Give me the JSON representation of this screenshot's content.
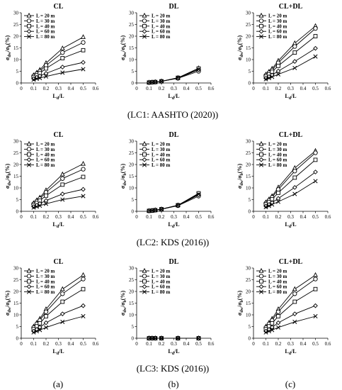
{
  "figure": {
    "row_captions": [
      "(LC1: AASHTO (2020))",
      "(LC2: KDS (2016))",
      "(LC3: KDS (2016))"
    ],
    "column_letters": [
      "(a)",
      "(b)",
      "(c)"
    ]
  },
  "chart_data": [
    {
      "id": "lc1-cl",
      "type": "line",
      "title": "CL",
      "xlabel": "L_d/L",
      "ylabel": "σ_dw/σ_b(%)",
      "xlim": [
        0,
        0.6
      ],
      "ylim": [
        0,
        30
      ],
      "xticks": [
        0,
        0.1,
        0.2,
        0.3,
        0.4,
        0.5,
        0.6
      ],
      "yticks": [
        0,
        5,
        10,
        15,
        20,
        25,
        30
      ],
      "legend_position": "top-left",
      "x": [
        0.1,
        0.125,
        0.15,
        0.2,
        0.333,
        0.5
      ],
      "series": [
        {
          "name": "L = 20 m",
          "marker": "triangle",
          "values": [
            3.3,
            4.4,
            5.6,
            8.5,
            14.8,
            19.6
          ]
        },
        {
          "name": "L = 30 m",
          "marker": "circle",
          "values": [
            3.0,
            4.0,
            5.0,
            7.5,
            13.0,
            17.3
          ]
        },
        {
          "name": "L = 40 m",
          "marker": "square",
          "values": [
            2.5,
            3.3,
            4.2,
            6.2,
            10.6,
            14.0
          ]
        },
        {
          "name": "L = 60 m",
          "marker": "diamond",
          "values": [
            1.8,
            2.4,
            3.0,
            4.1,
            6.8,
            8.8
          ]
        },
        {
          "name": "L = 80 m",
          "marker": "cross",
          "values": [
            1.4,
            1.8,
            2.1,
            2.8,
            4.4,
            5.9
          ]
        }
      ]
    },
    {
      "id": "lc1-dl",
      "type": "line",
      "title": "DL",
      "xlabel": "L_d/L",
      "ylabel": "σ_dw/σ_b(%)",
      "xlim": [
        0,
        0.6
      ],
      "ylim": [
        0,
        30
      ],
      "xticks": [
        0,
        0.1,
        0.2,
        0.3,
        0.4,
        0.5,
        0.6
      ],
      "yticks": [
        0,
        5,
        10,
        15,
        20,
        25,
        30
      ],
      "legend_position": "top-left",
      "x": [
        0.1,
        0.125,
        0.15,
        0.2,
        0.333,
        0.5
      ],
      "series": [
        {
          "name": "L = 20 m",
          "marker": "triangle",
          "values": [
            0.2,
            0.3,
            0.4,
            0.7,
            2.2,
            6.3
          ]
        },
        {
          "name": "L = 30 m",
          "marker": "circle",
          "values": [
            0.2,
            0.3,
            0.4,
            0.7,
            2.0,
            5.0
          ]
        },
        {
          "name": "L = 40 m",
          "marker": "square",
          "values": [
            0.2,
            0.3,
            0.4,
            0.7,
            2.2,
            6.2
          ]
        },
        {
          "name": "L = 60 m",
          "marker": "diamond",
          "values": [
            0.2,
            0.3,
            0.4,
            0.7,
            2.1,
            5.6
          ]
        },
        {
          "name": "L = 80 m",
          "marker": "cross",
          "values": [
            0.2,
            0.3,
            0.4,
            0.7,
            2.2,
            5.8
          ]
        }
      ]
    },
    {
      "id": "lc1-cldl",
      "type": "line",
      "title": "CL+DL",
      "xlabel": "L_d/L",
      "ylabel": "σ_dw/σ_b(%)",
      "xlim": [
        0,
        0.6
      ],
      "ylim": [
        0,
        30
      ],
      "xticks": [
        0,
        0.1,
        0.2,
        0.3,
        0.4,
        0.5,
        0.6
      ],
      "yticks": [
        0,
        5,
        10,
        15,
        20,
        25,
        30
      ],
      "legend_position": "top-left",
      "x": [
        0.1,
        0.125,
        0.15,
        0.2,
        0.333,
        0.5
      ],
      "series": [
        {
          "name": "L = 20 m",
          "marker": "triangle",
          "values": [
            3.6,
            4.8,
            6.1,
            9.5,
            17.0,
            24.3
          ]
        },
        {
          "name": "L = 30 m",
          "marker": "circle",
          "values": [
            3.3,
            4.4,
            5.5,
            8.6,
            15.6,
            23.3
          ]
        },
        {
          "name": "L = 40 m",
          "marker": "square",
          "values": [
            2.8,
            3.7,
            4.8,
            7.3,
            13.0,
            20.0
          ]
        },
        {
          "name": "L = 60 m",
          "marker": "diamond",
          "values": [
            2.0,
            2.7,
            3.4,
            5.1,
            9.2,
            14.8
          ]
        },
        {
          "name": "L = 80 m",
          "marker": "cross",
          "values": [
            1.6,
            2.1,
            2.6,
            3.7,
            6.4,
            11.3
          ]
        }
      ]
    },
    {
      "id": "lc2-cl",
      "type": "line",
      "title": "CL",
      "xlabel": "L_d/L",
      "ylabel": "σ_dw/σ_b(%)",
      "xlim": [
        0,
        0.6
      ],
      "ylim": [
        0,
        30
      ],
      "xticks": [
        0,
        0.1,
        0.2,
        0.3,
        0.4,
        0.5,
        0.6
      ],
      "yticks": [
        0,
        5,
        10,
        15,
        20,
        25,
        30
      ],
      "legend_position": "top-left",
      "x": [
        0.1,
        0.125,
        0.15,
        0.2,
        0.333,
        0.5
      ],
      "series": [
        {
          "name": "L = 20 m",
          "marker": "triangle",
          "values": [
            3.5,
            4.7,
            5.9,
            9.0,
            15.8,
            20.3
          ]
        },
        {
          "name": "L = 30 m",
          "marker": "circle",
          "values": [
            3.2,
            4.3,
            5.4,
            8.1,
            14.0,
            18.0
          ]
        },
        {
          "name": "L = 40 m",
          "marker": "square",
          "values": [
            2.7,
            3.6,
            4.6,
            6.7,
            11.4,
            14.7
          ]
        },
        {
          "name": "L = 60 m",
          "marker": "diamond",
          "values": [
            2.0,
            2.6,
            3.3,
            4.6,
            7.4,
            9.4
          ]
        },
        {
          "name": "L = 80 m",
          "marker": "cross",
          "values": [
            1.6,
            2.0,
            2.4,
            3.2,
            5.0,
            6.5
          ]
        }
      ]
    },
    {
      "id": "lc2-dl",
      "type": "line",
      "title": "DL",
      "xlabel": "L_d/L",
      "ylabel": "σ_dw/σ_b(%)",
      "xlim": [
        0,
        0.6
      ],
      "ylim": [
        0,
        30
      ],
      "xticks": [
        0,
        0.1,
        0.2,
        0.3,
        0.4,
        0.5,
        0.6
      ],
      "yticks": [
        0,
        5,
        10,
        15,
        20,
        25,
        30
      ],
      "legend_position": "top-left",
      "x": [
        0.1,
        0.125,
        0.15,
        0.2,
        0.333,
        0.5
      ],
      "series": [
        {
          "name": "L = 20 m",
          "marker": "triangle",
          "values": [
            0.2,
            0.3,
            0.5,
            0.9,
            2.6,
            7.5
          ]
        },
        {
          "name": "L = 30 m",
          "marker": "circle",
          "values": [
            0.2,
            0.3,
            0.5,
            0.9,
            2.4,
            6.5
          ]
        },
        {
          "name": "L = 40 m",
          "marker": "square",
          "values": [
            0.2,
            0.3,
            0.5,
            0.9,
            2.6,
            7.7
          ]
        },
        {
          "name": "L = 60 m",
          "marker": "diamond",
          "values": [
            0.2,
            0.3,
            0.5,
            0.9,
            2.5,
            7.0
          ]
        },
        {
          "name": "L = 80 m",
          "marker": "cross",
          "values": [
            0.2,
            0.3,
            0.5,
            0.9,
            2.6,
            7.3
          ]
        }
      ]
    },
    {
      "id": "lc2-cldl",
      "type": "line",
      "title": "CL+DL",
      "xlabel": "L_d/L",
      "ylabel": "σ_dw/σ_b(%)",
      "xlim": [
        0,
        0.6
      ],
      "ylim": [
        0,
        30
      ],
      "xticks": [
        0,
        0.1,
        0.2,
        0.3,
        0.4,
        0.5,
        0.6
      ],
      "yticks": [
        0,
        5,
        10,
        15,
        20,
        25,
        30
      ],
      "legend_position": "top-left",
      "x": [
        0.1,
        0.125,
        0.15,
        0.2,
        0.333,
        0.5
      ],
      "series": [
        {
          "name": "L = 20 m",
          "marker": "triangle",
          "values": [
            3.8,
            5.1,
            6.5,
            10.2,
            18.5,
            25.8
          ]
        },
        {
          "name": "L = 30 m",
          "marker": "circle",
          "values": [
            3.5,
            4.7,
            6.0,
            9.3,
            17.2,
            25.0
          ]
        },
        {
          "name": "L = 40 m",
          "marker": "square",
          "values": [
            3.0,
            4.0,
            5.2,
            7.9,
            14.4,
            22.0
          ]
        },
        {
          "name": "L = 60 m",
          "marker": "diamond",
          "values": [
            2.2,
            2.9,
            3.7,
            5.5,
            10.2,
            16.8
          ]
        },
        {
          "name": "L = 80 m",
          "marker": "cross",
          "values": [
            1.8,
            2.3,
            2.9,
            4.1,
            7.4,
            12.9
          ]
        }
      ]
    },
    {
      "id": "lc3-cl",
      "type": "line",
      "title": "CL",
      "xlabel": "L_d/L",
      "ylabel": "σ_dw/σ_b(%)",
      "xlim": [
        0,
        0.6
      ],
      "ylim": [
        0,
        30
      ],
      "xticks": [
        0,
        0.1,
        0.2,
        0.3,
        0.4,
        0.5,
        0.6
      ],
      "yticks": [
        0,
        5,
        10,
        15,
        20,
        25,
        30
      ],
      "legend_position": "top-left",
      "x": [
        0.1,
        0.125,
        0.15,
        0.2,
        0.333,
        0.5
      ],
      "series": [
        {
          "name": "L = 20 m",
          "marker": "triangle",
          "values": [
            5.0,
            6.6,
            8.3,
            12.4,
            21.0,
            27.0
          ]
        },
        {
          "name": "L = 30 m",
          "marker": "circle",
          "values": [
            4.6,
            6.1,
            7.6,
            11.3,
            19.0,
            25.3
          ]
        },
        {
          "name": "L = 40 m",
          "marker": "square",
          "values": [
            3.9,
            5.1,
            6.4,
            9.4,
            15.6,
            21.0
          ]
        },
        {
          "name": "L = 60 m",
          "marker": "diamond",
          "values": [
            3.0,
            3.8,
            4.7,
            6.6,
            10.4,
            13.9
          ]
        },
        {
          "name": "L = 80 m",
          "marker": "cross",
          "values": [
            2.5,
            3.0,
            3.5,
            4.6,
            7.0,
            9.4
          ]
        }
      ]
    },
    {
      "id": "lc3-dl",
      "type": "line",
      "title": "DL",
      "xlabel": "L_d/L",
      "ylabel": "σ_dw/σ_b(%)",
      "xlim": [
        0,
        0.6
      ],
      "ylim": [
        0,
        30
      ],
      "xticks": [
        0,
        0.1,
        0.2,
        0.3,
        0.4,
        0.5,
        0.6
      ],
      "yticks": [
        0,
        5,
        10,
        15,
        20,
        25,
        30
      ],
      "legend_position": "top-left",
      "x": [
        0.1,
        0.125,
        0.15,
        0.2,
        0.333,
        0.5
      ],
      "series": [
        {
          "name": "L = 20 m",
          "marker": "triangle",
          "values": [
            0,
            0,
            0,
            0,
            0,
            0
          ]
        },
        {
          "name": "L = 30 m",
          "marker": "circle",
          "values": [
            0,
            0,
            0,
            0,
            0,
            0
          ]
        },
        {
          "name": "L = 40 m",
          "marker": "square",
          "values": [
            0,
            0,
            0,
            0,
            0,
            0
          ]
        },
        {
          "name": "L = 60 m",
          "marker": "diamond",
          "values": [
            0,
            0,
            0,
            0,
            0,
            0
          ]
        },
        {
          "name": "L = 80 m",
          "marker": "cross",
          "values": [
            0,
            0,
            0,
            0,
            0,
            0
          ]
        }
      ]
    },
    {
      "id": "lc3-cldl",
      "type": "line",
      "title": "CL+DL",
      "xlabel": "L_d/L",
      "ylabel": "σ_dw/σ_b(%)",
      "xlim": [
        0,
        0.6
      ],
      "ylim": [
        0,
        30
      ],
      "xticks": [
        0,
        0.1,
        0.2,
        0.3,
        0.4,
        0.5,
        0.6
      ],
      "yticks": [
        0,
        5,
        10,
        15,
        20,
        25,
        30
      ],
      "legend_position": "top-left",
      "x": [
        0.1,
        0.125,
        0.15,
        0.2,
        0.333,
        0.5
      ],
      "series": [
        {
          "name": "L = 20 m",
          "marker": "triangle",
          "values": [
            5.0,
            6.6,
            8.3,
            12.4,
            21.0,
            27.0
          ]
        },
        {
          "name": "L = 30 m",
          "marker": "circle",
          "values": [
            4.6,
            6.1,
            7.6,
            11.3,
            19.0,
            25.3
          ]
        },
        {
          "name": "L = 40 m",
          "marker": "square",
          "values": [
            3.9,
            5.1,
            6.4,
            9.4,
            15.6,
            21.0
          ]
        },
        {
          "name": "L = 60 m",
          "marker": "diamond",
          "values": [
            3.0,
            3.8,
            4.7,
            6.6,
            10.4,
            13.9
          ]
        },
        {
          "name": "L = 80 m",
          "marker": "cross",
          "values": [
            2.5,
            3.0,
            3.5,
            4.6,
            7.0,
            9.4
          ]
        }
      ]
    }
  ]
}
